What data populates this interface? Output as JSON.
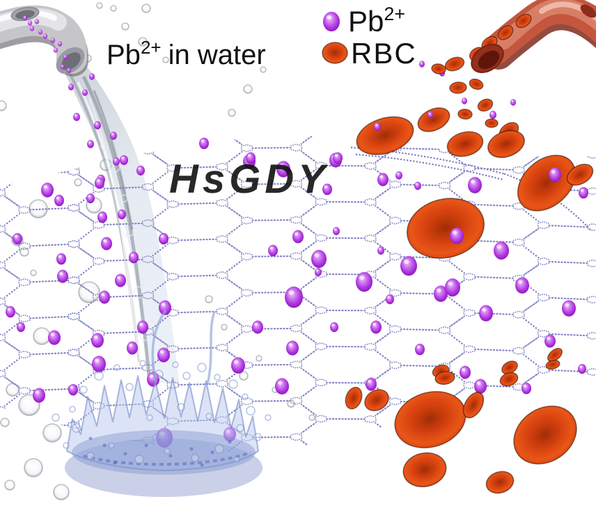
{
  "figure": {
    "caption_left": {
      "base": "Pb",
      "sup": "2+",
      "rest": "in water"
    },
    "membrane_label": "HsGDY",
    "legend": {
      "pb_base": "Pb",
      "pb_sup": "2+",
      "rbc_label": "RBC"
    },
    "colors": {
      "background": "#ffffff",
      "text": "#111111",
      "pb_light": "#d27ff0",
      "pb_mid": "#b13ae0",
      "pb_dark": "#6d0a9c",
      "rbc_body": "#e85618",
      "rbc_rim": "#7e1c03",
      "mesh": "#7b7dc2",
      "pipe_gray": "#c6c6ca",
      "vessel_red": "#c4563e",
      "water_blue": "#8fa6d8"
    }
  }
}
